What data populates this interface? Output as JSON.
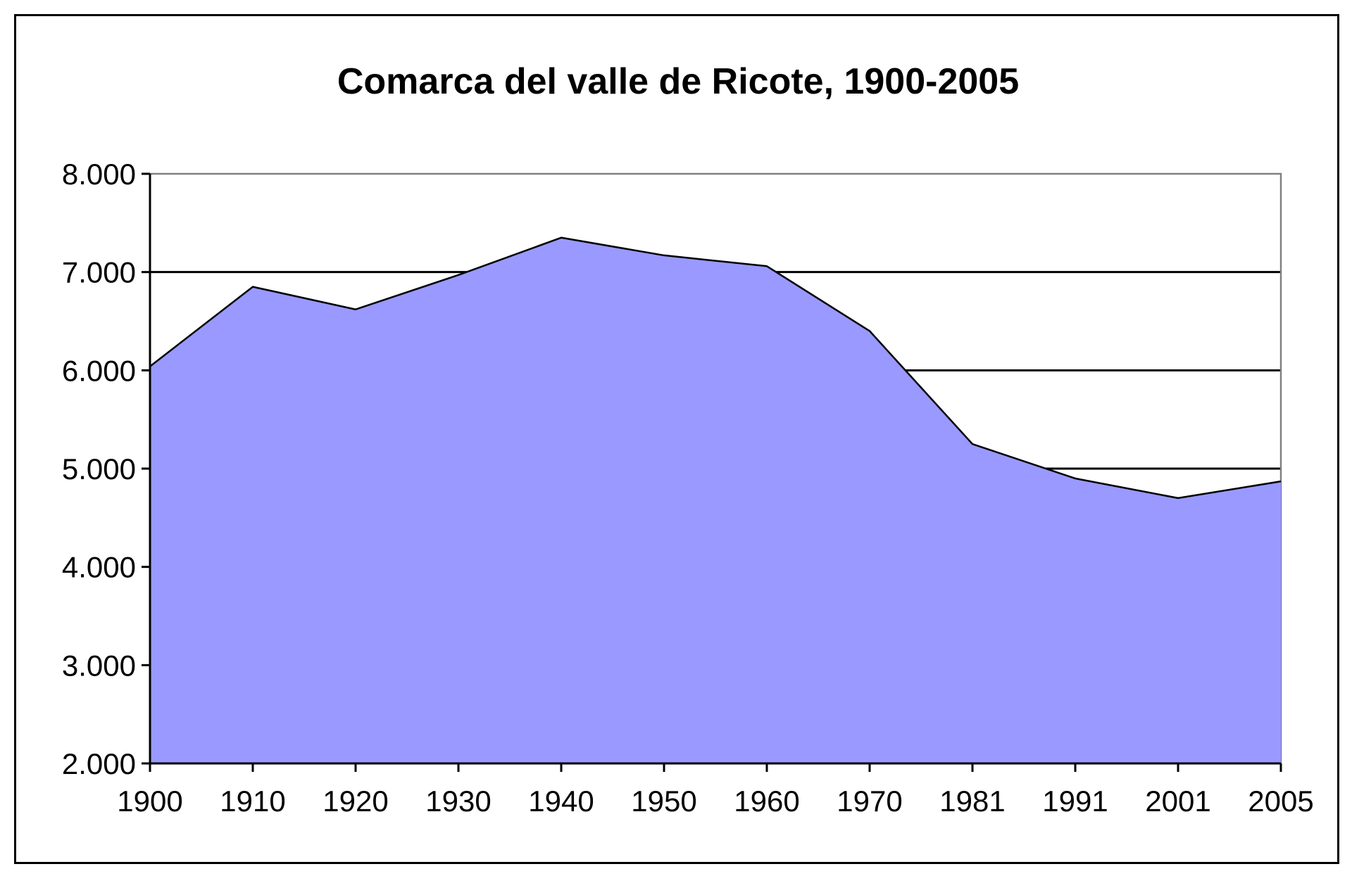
{
  "chart_data": {
    "type": "area",
    "title": "Comarca del valle de Ricote, 1900-2005",
    "xlabel": "",
    "ylabel": "",
    "categories": [
      "1900",
      "1910",
      "1920",
      "1930",
      "1940",
      "1950",
      "1960",
      "1970",
      "1981",
      "1991",
      "2001",
      "2005"
    ],
    "series": [
      {
        "values": [
          6040,
          6850,
          6620,
          6970,
          7350,
          7170,
          7060,
          6400,
          5250,
          4900,
          4700,
          4870
        ]
      }
    ],
    "ylim": [
      2000,
      8000
    ],
    "y_ticks": [
      "2.000",
      "3.000",
      "4.000",
      "5.000",
      "6.000",
      "7.000",
      "8.000"
    ],
    "y_tick_values": [
      2000,
      3000,
      4000,
      5000,
      6000,
      7000,
      8000
    ],
    "grid": true,
    "legend": "none",
    "colors": {
      "fill": "#9999ff",
      "line": "#000000",
      "grid": "#000000",
      "plot_border": "#808080"
    }
  }
}
